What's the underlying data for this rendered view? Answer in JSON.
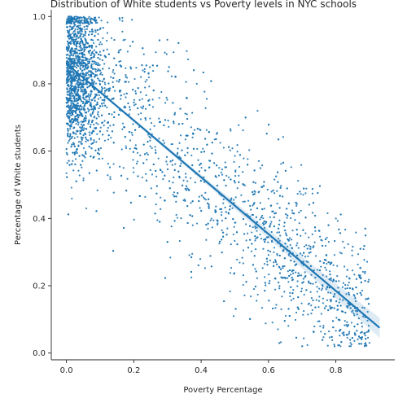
{
  "chart_data": {
    "type": "scatter",
    "title": "Distribution of White students vs Poverty levels in NYC schools",
    "xlabel": "Poverty Percentage",
    "ylabel": "Percentage of White students",
    "xlim": [
      -0.045,
      0.975
    ],
    "ylim": [
      -0.02,
      1.02
    ],
    "xticks": [
      0.0,
      0.2,
      0.4,
      0.6,
      0.8
    ],
    "xtick_labels": [
      "0.0",
      "0.2",
      "0.4",
      "0.6",
      "0.8"
    ],
    "yticks": [
      0.0,
      0.2,
      0.4,
      0.6,
      0.8,
      1.0
    ],
    "ytick_labels": [
      "0.0",
      "0.2",
      "0.4",
      "0.6",
      "0.8",
      "1.0"
    ],
    "grid": false,
    "point_color": "#1f77b4",
    "point_count": 3500,
    "point_generation": {
      "dense_cluster": {
        "x_range": [
          0.0,
          0.1
        ],
        "y_center": 0.82,
        "y_spread": 0.12
      },
      "trend_relation": {
        "slope": -0.84,
        "intercept": 0.86,
        "noise": 0.13
      },
      "high_poverty_cluster": {
        "x_range": [
          0.55,
          0.8
        ],
        "y_center": 0.15
      }
    },
    "regression": {
      "x_start": 0.0,
      "x_end": 0.93,
      "y_start": 0.86,
      "y_end": 0.075,
      "line_color": "#1f77b4",
      "ci_color": "#1f77b4"
    }
  }
}
